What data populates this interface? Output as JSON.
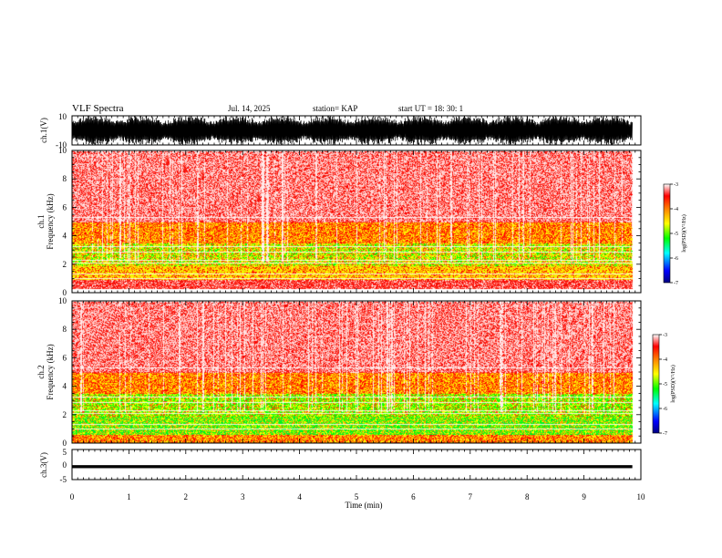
{
  "header": {
    "title": "VLF Spectra",
    "date": "Jul. 14, 2025",
    "station": "station= KAP",
    "start": "start  UT  =   18: 30: 1"
  },
  "colors": {
    "background": "#ffffff",
    "waveform": "#000000",
    "colormap": [
      "#000080",
      "#0000ff",
      "#00ffff",
      "#00ff00",
      "#ffff00",
      "#ff8000",
      "#ff0000",
      "#ffffff"
    ]
  },
  "chart_data": [
    {
      "type": "line",
      "name": "ch1-waveform",
      "ylabel": "ch.1(V)",
      "ylim": [
        -10,
        10
      ],
      "yticks": [
        "10",
        "-10"
      ],
      "description_values": "dense oscillation saturating between about -10 and +10 V over the whole 0-9.85 min interval"
    },
    {
      "type": "heatmap",
      "name": "ch1-spectrogram",
      "ylabel_line1": "ch.1",
      "ylabel_line2": "Frequency (kHz)",
      "ylim": [
        0,
        10
      ],
      "yticks": [
        "10",
        "8",
        "6",
        "4",
        "2",
        "0"
      ],
      "colorbar": {
        "label": "log(PSD)(V²/Hz)",
        "range": [
          -7,
          -3
        ],
        "ticks": [
          "-3",
          "-4",
          "-5",
          "-6",
          "-7"
        ]
      },
      "bands_khz": [
        {
          "from": 0.3,
          "to": 0.9,
          "level": "red"
        },
        {
          "from": 0.9,
          "to": 1.9,
          "level": "yellow"
        },
        {
          "from": 1.9,
          "to": 3.5,
          "level": "yellow-green"
        },
        {
          "from": 3.5,
          "to": 5.0,
          "level": "orange"
        },
        {
          "from": 5.0,
          "to": 10.0,
          "level": "red"
        }
      ]
    },
    {
      "type": "heatmap",
      "name": "ch2-spectrogram",
      "ylabel_line1": "ch.2",
      "ylabel_line2": "Frequency (kHz)",
      "ylim": [
        0,
        10
      ],
      "yticks": [
        "10",
        "8",
        "6",
        "4",
        "2",
        "0"
      ],
      "colorbar": {
        "label": "log(PSD)(V²/Hz)",
        "range": [
          -7,
          -3
        ],
        "ticks": [
          "-3",
          "-4",
          "-5",
          "-6",
          "-7"
        ]
      },
      "bands_khz": [
        {
          "from": 0.0,
          "to": 0.6,
          "level": "orange"
        },
        {
          "from": 0.6,
          "to": 1.9,
          "level": "green"
        },
        {
          "from": 1.9,
          "to": 3.5,
          "level": "green-yellow"
        },
        {
          "from": 3.5,
          "to": 5.0,
          "level": "orange"
        },
        {
          "from": 5.0,
          "to": 10.0,
          "level": "red"
        }
      ]
    },
    {
      "type": "line",
      "name": "ch3-waveform",
      "ylabel": "ch.3(V)",
      "ylim": [
        -5,
        5
      ],
      "yticks": [
        "5",
        "0",
        "-5"
      ],
      "level_band": [
        -1.2,
        -0.2
      ]
    }
  ],
  "xaxis": {
    "label": "Time (min)",
    "range": [
      0,
      10
    ],
    "data_end": 9.85,
    "ticks": [
      "0",
      "1",
      "2",
      "3",
      "4",
      "5",
      "6",
      "7",
      "8",
      "9",
      "10"
    ]
  }
}
